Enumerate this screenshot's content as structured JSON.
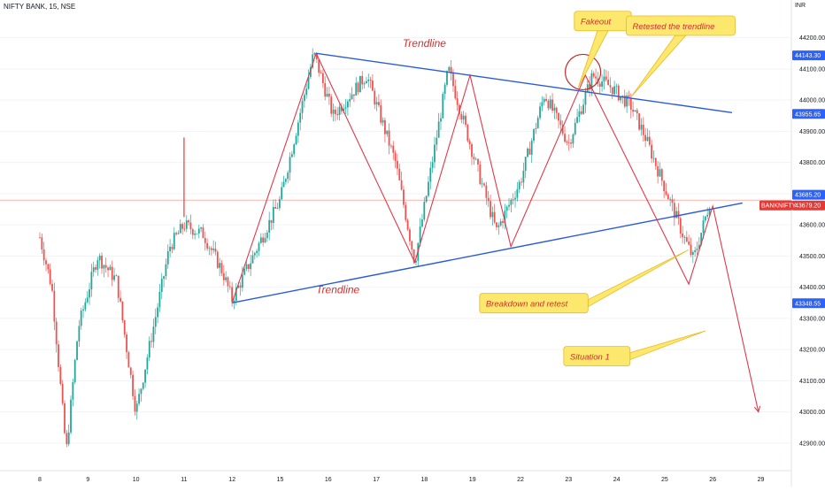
{
  "header": {
    "symbol_line": "NIFTY BANK, 15, NSE",
    "currency": "INR"
  },
  "colors": {
    "up": "#26a69a",
    "down": "#ef5350",
    "trendline": "#2a5bd7",
    "swing": "#e0394a",
    "callout_fill": "#fde86e",
    "callout_stroke": "#e8b923",
    "callout_text": "#d32f2f",
    "price_tag_blue": "#2962ff",
    "price_tag_red": "#e53935"
  },
  "chart_data": {
    "type": "candlestick",
    "y_axis": {
      "ylim": [
        42840,
        44270
      ],
      "ticks": [
        42900,
        43000,
        43100,
        43200,
        43300,
        43400,
        43500,
        43600,
        43700,
        43800,
        43900,
        44000,
        44100,
        44200
      ],
      "tick_labels": [
        "42900.00",
        "43000.00",
        "43100.00",
        "43200.00",
        "43300.00",
        "43400.00",
        "43500.00",
        "43600.00",
        "43700.00",
        "43800.00",
        "43900.00",
        "44000.00",
        "44100.00",
        "44200.00"
      ]
    },
    "x_axis": {
      "labels": [
        "8",
        "9",
        "10",
        "11",
        "12",
        "15",
        "16",
        "17",
        "18",
        "19",
        "22",
        "23",
        "24",
        "25",
        "26",
        "29"
      ],
      "label_index": [
        0,
        1,
        2,
        3,
        4,
        5,
        6,
        7,
        8,
        9,
        10,
        11,
        12,
        13,
        14,
        15
      ]
    },
    "price_waypoints": [
      [
        0,
        43560
      ],
      [
        0.25,
        43400
      ],
      [
        0.55,
        42870
      ],
      [
        0.8,
        43270
      ],
      [
        1.2,
        43500
      ],
      [
        1.6,
        43420
      ],
      [
        2.0,
        43000
      ],
      [
        2.4,
        43300
      ],
      [
        2.7,
        43530
      ],
      [
        3.0,
        43600
      ],
      [
        3.4,
        43570
      ],
      [
        3.8,
        43450
      ],
      [
        4.0,
        43360
      ],
      [
        5.0,
        43680
      ],
      [
        5.7,
        44150
      ],
      [
        6.1,
        43950
      ],
      [
        6.8,
        44080
      ],
      [
        7.4,
        43800
      ],
      [
        7.8,
        43480
      ],
      [
        8.5,
        44100
      ],
      [
        9.1,
        43780
      ],
      [
        9.5,
        43580
      ],
      [
        10.0,
        43740
      ],
      [
        10.5,
        44020
      ],
      [
        11.0,
        43860
      ],
      [
        11.5,
        44080
      ],
      [
        11.9,
        44040
      ],
      [
        12.3,
        43980
      ],
      [
        12.6,
        43880
      ],
      [
        13.0,
        43720
      ],
      [
        13.4,
        43560
      ],
      [
        13.6,
        43490
      ],
      [
        13.75,
        43570
      ],
      [
        13.95,
        43680
      ]
    ],
    "overlays": {
      "trendlines": [
        {
          "from": [
            4.0,
            43350
          ],
          "to": [
            14.62,
            43670
          ]
        },
        {
          "from": [
            5.75,
            44150
          ],
          "to": [
            14.4,
            43960
          ]
        }
      ],
      "swing_path": [
        [
          4.0,
          43350
        ],
        [
          5.75,
          44150
        ],
        [
          7.8,
          43480
        ],
        [
          8.95,
          44080
        ],
        [
          9.8,
          43530
        ],
        [
          11.35,
          44080
        ],
        [
          13.5,
          43410
        ],
        [
          14.0,
          43660
        ],
        [
          14.95,
          43000
        ]
      ],
      "spike": {
        "x": 3.0,
        "from": 43625,
        "to": 43880
      },
      "horizontal_price": 43679.2,
      "fakeout_circle": {
        "x": 11.3,
        "y": 44090
      }
    },
    "price_tags": [
      {
        "label": "44143.30",
        "price": 44143.3,
        "kind": "blue"
      },
      {
        "label": "43955.65",
        "price": 43955.65,
        "kind": "blue"
      },
      {
        "label": "43685.20",
        "price": 43685.2,
        "kind": "blue"
      },
      {
        "label": "43679.20",
        "price": 43679.2,
        "kind": "red"
      },
      {
        "label": "43348.55",
        "price": 43348.55,
        "kind": "blue"
      }
    ],
    "symbol_tag": "BANKNIFTY",
    "trendline_labels": [
      {
        "text": "Trendline",
        "x": 8.0,
        "y": 44170
      },
      {
        "text": "Trendline",
        "x": 6.2,
        "y": 43380
      }
    ],
    "annotations": [
      {
        "text": "Fakeout",
        "box": [
          11.12,
          44285
        ],
        "point_to": [
          11.2,
          44040
        ]
      },
      {
        "text": "Retested the trendline",
        "box": [
          12.2,
          44270
        ],
        "point_to": [
          12.3,
          44010
        ]
      },
      {
        "text": "Breakdown and retest",
        "box": [
          9.15,
          43380
        ],
        "point_to": [
          13.5,
          43520
        ]
      },
      {
        "text": "Situation 1",
        "box": [
          10.9,
          43210
        ],
        "point_to": [
          13.85,
          43260
        ]
      }
    ]
  }
}
